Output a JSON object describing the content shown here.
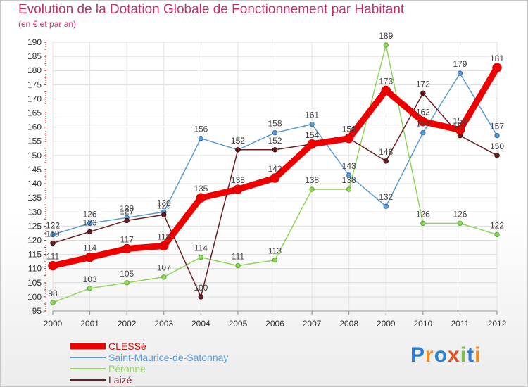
{
  "chart_data": {
    "type": "line",
    "title": "Evolution de la Dotation Globale de Fonctionnement par Habitant",
    "subtitle": "(en € et par an)",
    "x": [
      "2000",
      "2001",
      "2002",
      "2003",
      "2004",
      "2005",
      "2006",
      "2007",
      "2008",
      "2009",
      "2010",
      "2011",
      "2012"
    ],
    "ylim": [
      95,
      190
    ],
    "yticks": [
      95,
      100,
      105,
      110,
      115,
      120,
      125,
      130,
      135,
      140,
      145,
      150,
      155,
      160,
      165,
      170,
      175,
      180,
      185,
      190
    ],
    "series": [
      {
        "name": "CLESSé",
        "color": "#ee0000",
        "values": [
          111,
          114,
          117,
          118,
          135,
          138,
          142,
          154,
          156,
          173,
          162,
          159,
          181
        ]
      },
      {
        "name": "Saint-Maurice-de-Satonnay",
        "color": "#5b9bd5",
        "values": [
          122,
          126,
          128,
          130,
          156,
          152,
          158,
          161,
          143,
          132,
          158,
          179,
          157
        ]
      },
      {
        "name": "Péronne",
        "color": "#8fd65a",
        "values": [
          98,
          103,
          105,
          107,
          114,
          111,
          113,
          138,
          138,
          189,
          126,
          126,
          122
        ]
      },
      {
        "name": "Laizé",
        "color": "#6b1d22",
        "values": [
          119,
          123,
          127,
          129,
          100,
          152,
          152,
          154,
          156,
          148,
          172,
          157,
          150
        ]
      }
    ]
  },
  "logo": {
    "text": "Proxiti",
    "colors": [
      "#2a7fd4",
      "#f08c1e",
      "#2a7fd4",
      "#e84a1c",
      "#7cc242",
      "#2a7fd4",
      "#f08c1e"
    ]
  }
}
